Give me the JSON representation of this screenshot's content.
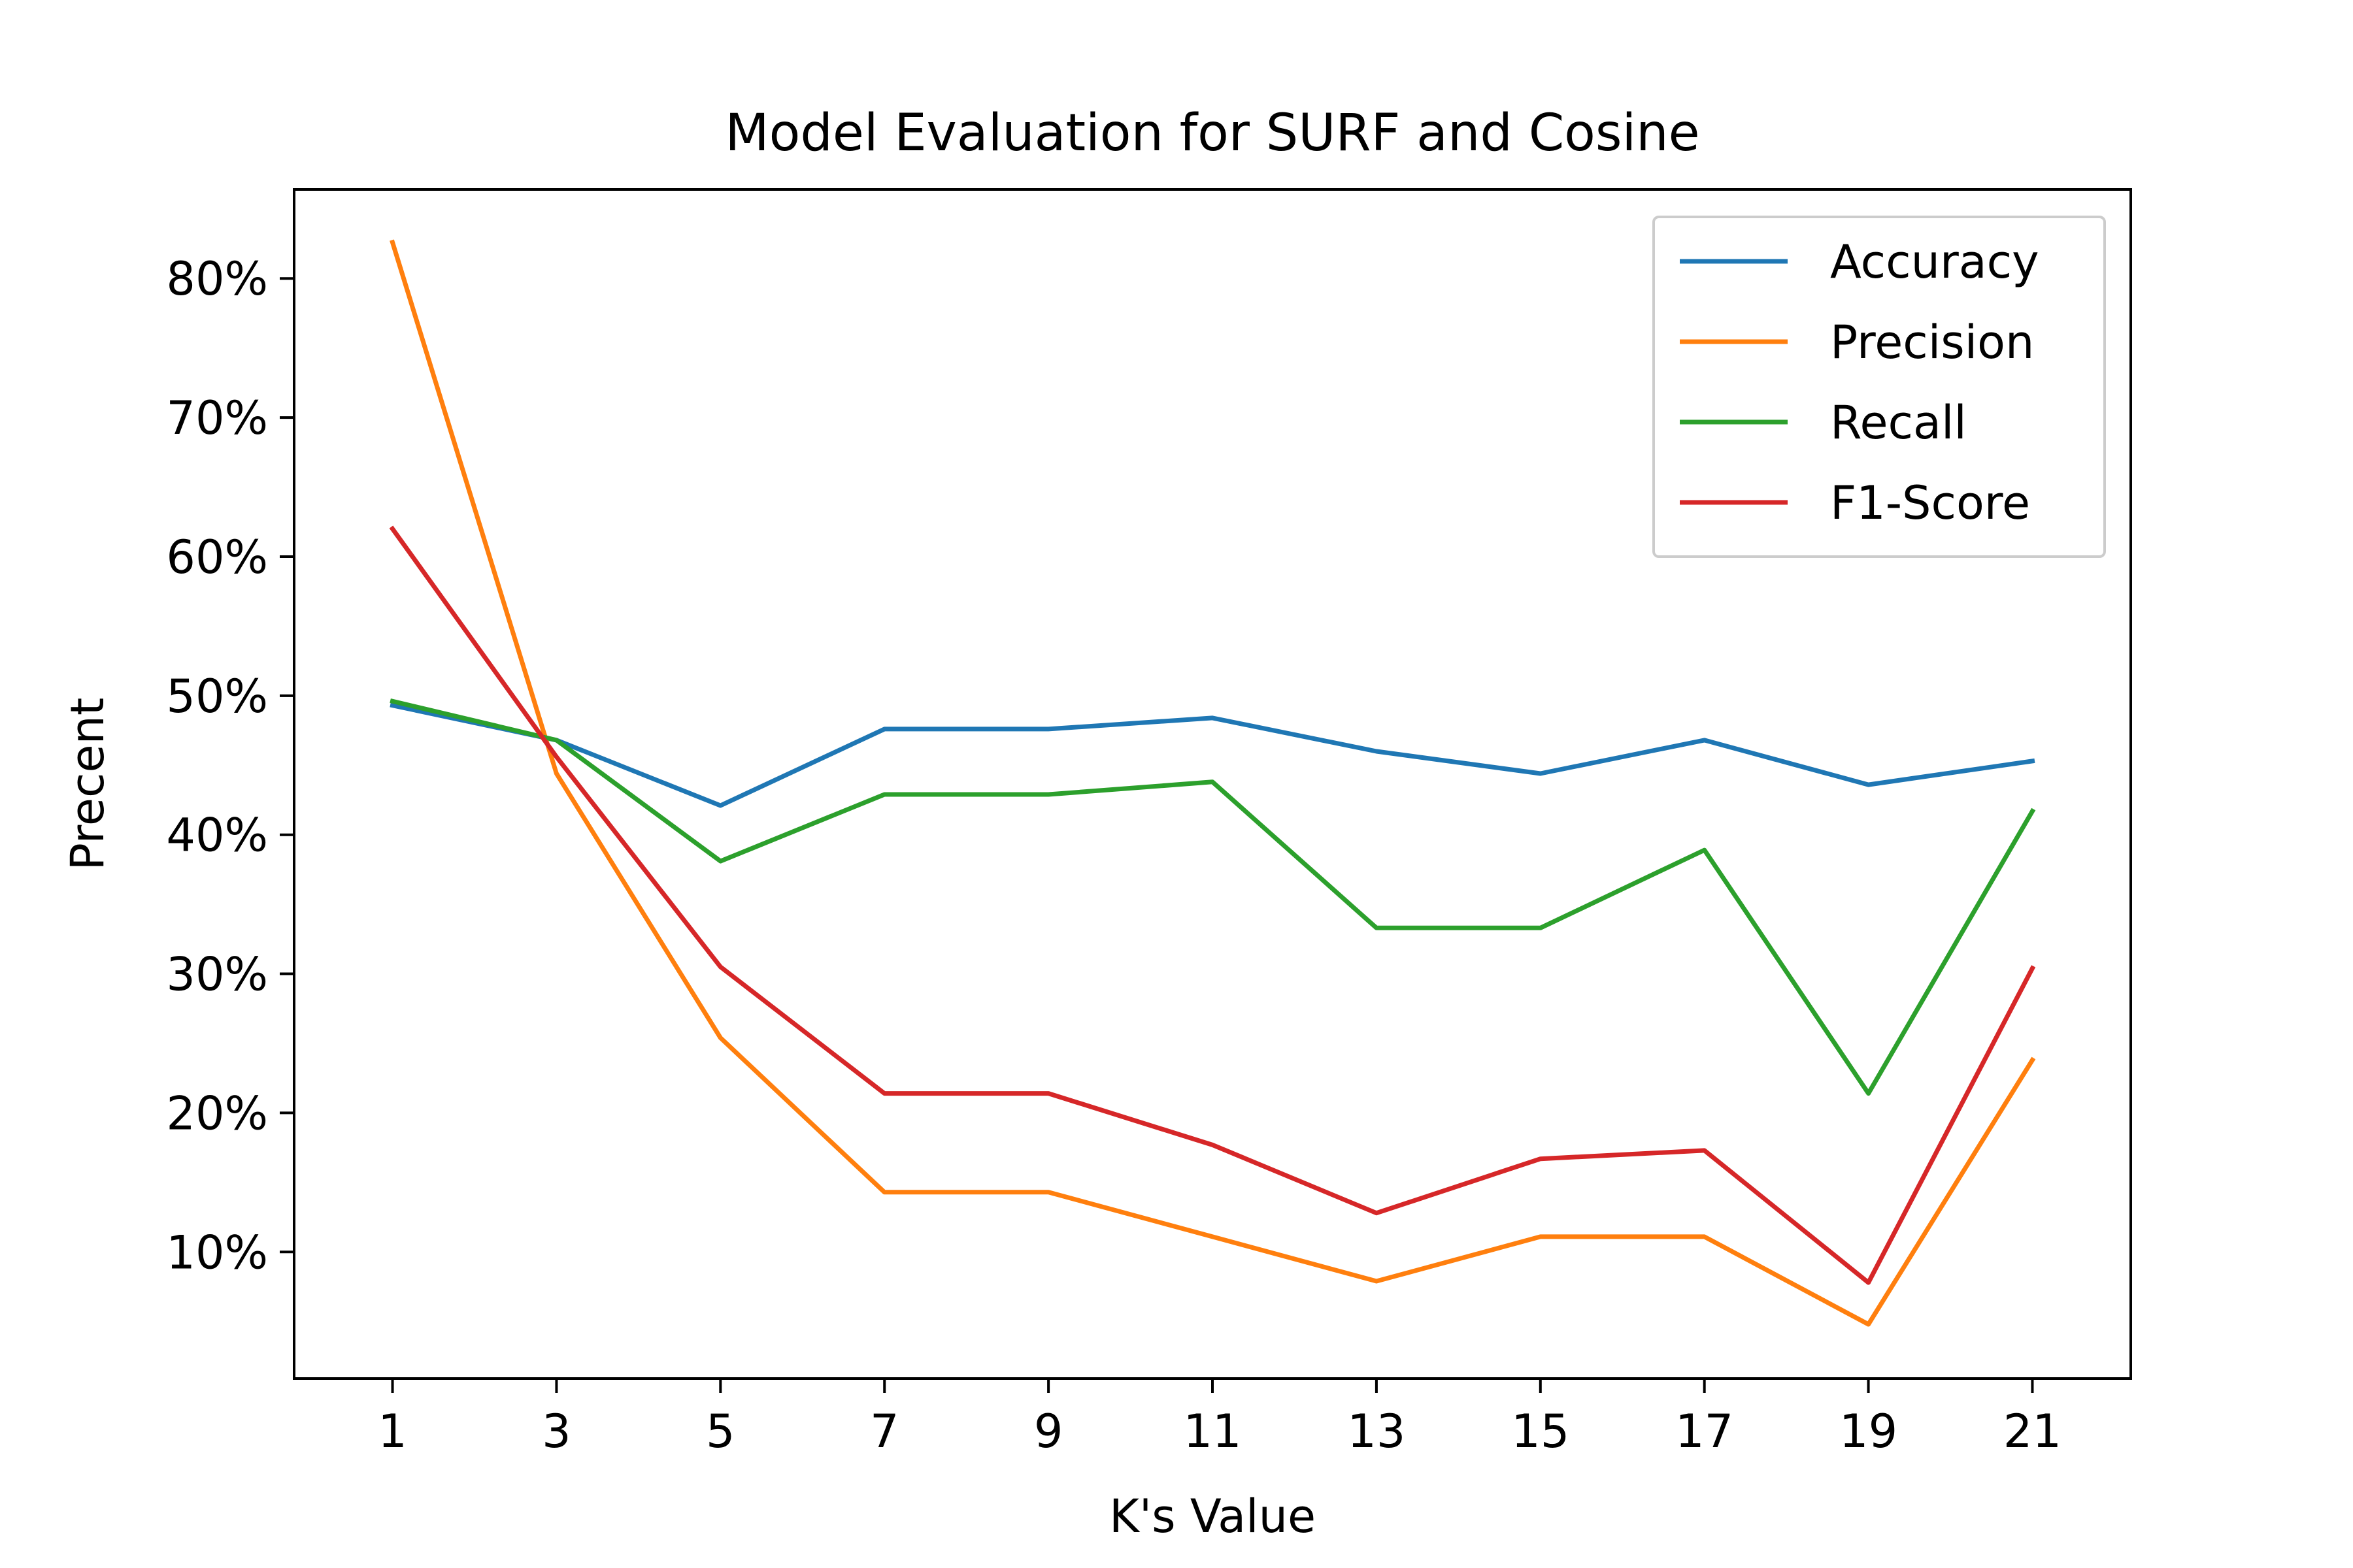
{
  "chart_data": {
    "type": "line",
    "title": "Model Evaluation for SURF and Cosine",
    "xlabel": "K's Value",
    "ylabel": "Precent",
    "x": [
      1,
      3,
      5,
      7,
      9,
      11,
      13,
      15,
      17,
      19,
      21
    ],
    "xticks": [
      "1",
      "3",
      "5",
      "7",
      "9",
      "11",
      "13",
      "15",
      "17",
      "19",
      "21"
    ],
    "yticks": [
      {
        "value": 10,
        "label": "10%"
      },
      {
        "value": 20,
        "label": "20%"
      },
      {
        "value": 30,
        "label": "30%"
      },
      {
        "value": 40,
        "label": "40%"
      },
      {
        "value": 50,
        "label": "50%"
      },
      {
        "value": 60,
        "label": "60%"
      },
      {
        "value": 70,
        "label": "70%"
      },
      {
        "value": 80,
        "label": "80%"
      }
    ],
    "xlim": [
      -0.2,
      22.2
    ],
    "ylim": [
      0.9,
      86.4
    ],
    "grid": false,
    "legend_position": "top-right",
    "series": [
      {
        "name": "Accuracy",
        "color": "#1f77b4",
        "values": [
          49.3,
          46.8,
          42.1,
          47.6,
          47.6,
          48.4,
          46.0,
          44.4,
          46.8,
          43.6,
          45.3
        ]
      },
      {
        "name": "Precision",
        "color": "#ff7f0e",
        "values": [
          82.6,
          44.4,
          25.4,
          14.3,
          14.3,
          11.1,
          7.9,
          11.1,
          11.1,
          4.8,
          23.8
        ]
      },
      {
        "name": "Recall",
        "color": "#2ca02c",
        "values": [
          49.6,
          46.8,
          38.1,
          42.9,
          42.9,
          43.8,
          33.3,
          33.3,
          38.9,
          21.4,
          41.7
        ]
      },
      {
        "name": "F1-Score",
        "color": "#d62728",
        "values": [
          62.0,
          45.6,
          30.5,
          21.4,
          21.4,
          17.7,
          12.8,
          16.7,
          17.3,
          7.8,
          30.4
        ]
      }
    ]
  }
}
